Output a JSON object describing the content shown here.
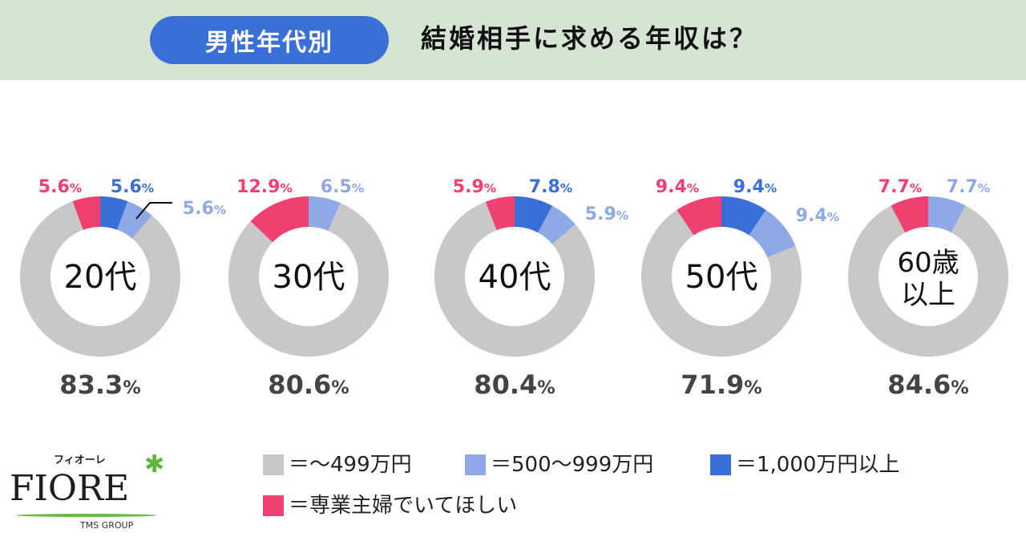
{
  "header": {
    "badge": "男性年代別",
    "title": "結婚相手に求める年収は？"
  },
  "colors": {
    "under499": "#c8c8c8",
    "500to999": "#8fa9e6",
    "over1000": "#3b6fd8",
    "housewife": "#f0406f",
    "header_bg": "#d6e4d3"
  },
  "chart_data": {
    "type": "pie",
    "subtype": "donut",
    "series_order": [
      "=1,000万円以上",
      "=500〜999万円",
      "=〜499万円",
      "=専業主婦でいてほしい"
    ],
    "charts": [
      {
        "label": "20代",
        "values": [
          5.6,
          5.6,
          83.3,
          5.6
        ],
        "labels": [
          "5.6%",
          "5.6%",
          "83.3%",
          "5.6%"
        ]
      },
      {
        "label": "30代",
        "values": [
          0,
          6.5,
          80.6,
          12.9
        ],
        "labels": [
          "",
          "6.5%",
          "80.6%",
          "12.9%"
        ]
      },
      {
        "label": "40代",
        "values": [
          7.8,
          5.9,
          80.4,
          5.9
        ],
        "labels": [
          "7.8%",
          "5.9%",
          "80.4%",
          "5.9%"
        ]
      },
      {
        "label": "50代",
        "values": [
          9.4,
          9.4,
          71.9,
          9.4
        ],
        "labels": [
          "9.4%",
          "9.4%",
          "71.9%",
          "9.4%"
        ]
      },
      {
        "label": "60歳\n以上",
        "values": [
          0,
          7.7,
          84.6,
          7.7
        ],
        "labels": [
          "",
          "7.7%",
          "84.6%",
          "7.7%"
        ]
      }
    ]
  },
  "legend": [
    {
      "label": "＝〜499万円",
      "key": "under499"
    },
    {
      "label": "＝500〜999万円",
      "key": "500to999"
    },
    {
      "label": "＝1,000万円以上",
      "key": "over1000"
    },
    {
      "label": "＝専業主婦でいてほしい",
      "key": "housewife"
    }
  ],
  "logo": {
    "kana": "フィオーレ",
    "name": "FIORE",
    "group": "TMS GROUP"
  }
}
